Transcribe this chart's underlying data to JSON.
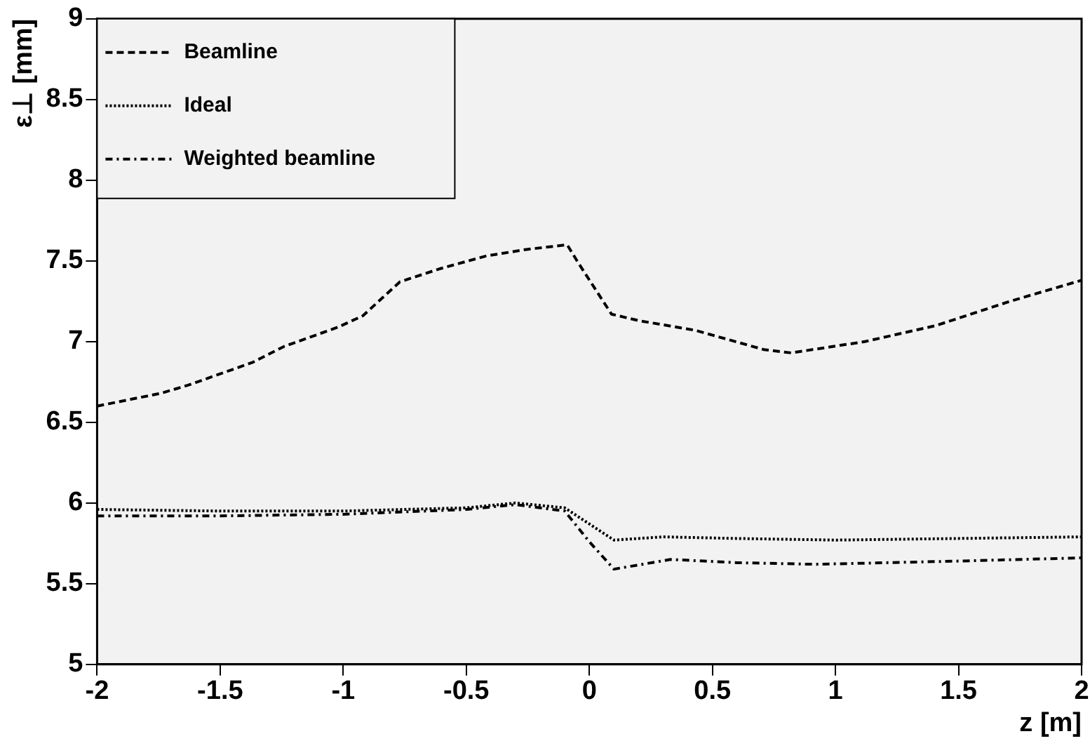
{
  "chart_data": {
    "type": "line",
    "xlabel": "z [m]",
    "ylabel": "ε⊥ [mm]",
    "xlim": [
      -2,
      2
    ],
    "xticks": [
      -2,
      -1.5,
      -1,
      -0.5,
      0,
      0.5,
      1,
      1.5,
      2
    ],
    "ylim": [
      5,
      9
    ],
    "yticks": [
      5,
      5.5,
      6,
      6.5,
      7,
      7.5,
      8,
      8.5,
      9
    ],
    "grid": false,
    "legend": "top left",
    "marker": "none",
    "series": [
      {
        "name": "Beamline",
        "color": "#000000",
        "line_style": "dashed",
        "x": [
          -2,
          -1.74,
          -1.63,
          -1.37,
          -1.24,
          -1.02,
          -0.92,
          -0.77,
          -0.61,
          -0.42,
          -0.26,
          -0.09,
          -0.05,
          0.09,
          0.2,
          0.43,
          0.71,
          0.82,
          1.12,
          1.41,
          1.71,
          2
        ],
        "values": [
          6.6,
          6.68,
          6.73,
          6.87,
          6.97,
          7.09,
          7.16,
          7.37,
          7.45,
          7.53,
          7.57,
          7.6,
          7.5,
          7.17,
          7.13,
          7.07,
          6.95,
          6.93,
          7,
          7.1,
          7.25,
          7.38
        ]
      },
      {
        "name": "Ideal",
        "color": "#000000",
        "line_style": "dotted",
        "x": [
          -2,
          -1.5,
          -1,
          -0.5,
          -0.3,
          -0.1,
          0,
          0.1,
          0.3,
          0.6,
          1,
          1.5,
          2
        ],
        "values": [
          5.96,
          5.95,
          5.95,
          5.97,
          6,
          5.97,
          5.87,
          5.77,
          5.79,
          5.78,
          5.77,
          5.78,
          5.79
        ]
      },
      {
        "name": "Weighted beamline",
        "color": "#000000",
        "line_style": "dashdot",
        "x": [
          -2,
          -1.5,
          -1,
          -0.5,
          -0.3,
          -0.1,
          0,
          0.1,
          0.33,
          0.6,
          0.92,
          1.5,
          2
        ],
        "values": [
          5.92,
          5.92,
          5.93,
          5.96,
          5.99,
          5.95,
          5.76,
          5.59,
          5.65,
          5.63,
          5.62,
          5.64,
          5.66
        ]
      }
    ]
  }
}
